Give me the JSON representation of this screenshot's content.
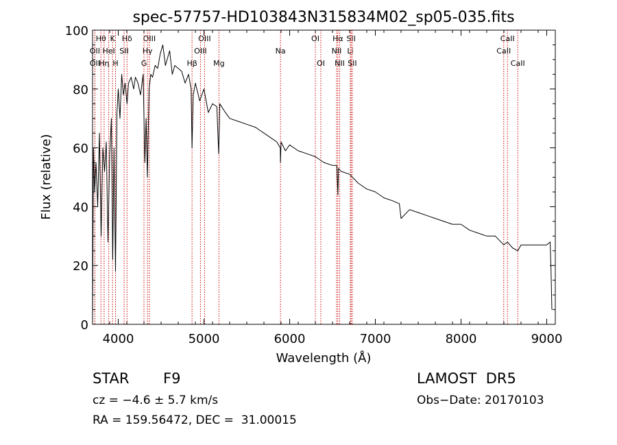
{
  "chart_data": {
    "type": "line",
    "title": "spec-57757-HD103843N315834M02_sp05-035.fits",
    "xlabel": "Wavelength (Å)",
    "ylabel": "Flux (relative)",
    "xlim": [
      3700,
      9100
    ],
    "ylim": [
      0,
      100
    ],
    "xticks": [
      4000,
      5000,
      6000,
      7000,
      8000,
      9000
    ],
    "yticks": [
      0,
      20,
      40,
      60,
      80,
      100
    ],
    "grid": false,
    "color": "#000000",
    "line_color": "#cc0000",
    "spectrum": {
      "x": [
        3700,
        3710,
        3725,
        3740,
        3760,
        3780,
        3800,
        3820,
        3840,
        3860,
        3880,
        3900,
        3920,
        3935,
        3950,
        3968,
        3985,
        4000,
        4020,
        4040,
        4060,
        4080,
        4102,
        4120,
        4150,
        4180,
        4200,
        4230,
        4260,
        4290,
        4310,
        4325,
        4340,
        4360,
        4380,
        4400,
        4430,
        4460,
        4490,
        4520,
        4550,
        4580,
        4600,
        4630,
        4660,
        4700,
        4740,
        4780,
        4820,
        4850,
        4861,
        4875,
        4900,
        4950,
        5000,
        5050,
        5100,
        5150,
        5172,
        5185,
        5250,
        5300,
        5400,
        5500,
        5600,
        5700,
        5800,
        5850,
        5890,
        5893,
        5900,
        5950,
        6000,
        6100,
        6200,
        6300,
        6400,
        6500,
        6550,
        6563,
        6570,
        6600,
        6700,
        6800,
        6900,
        7000,
        7100,
        7200,
        7280,
        7300,
        7400,
        7500,
        7600,
        7700,
        7800,
        7900,
        8000,
        8100,
        8200,
        8300,
        8400,
        8498,
        8542,
        8600,
        8662,
        8700,
        8800,
        8900,
        9000,
        9040,
        9050,
        9060
      ],
      "y": [
        0,
        60,
        45,
        55,
        40,
        65,
        30,
        60,
        52,
        62,
        28,
        58,
        70,
        22,
        60,
        18,
        72,
        80,
        70,
        85,
        78,
        82,
        75,
        82,
        84,
        80,
        84,
        82,
        78,
        85,
        55,
        70,
        50,
        80,
        85,
        84,
        88,
        87,
        92,
        95,
        88,
        91,
        93,
        85,
        88,
        87,
        86,
        82,
        85,
        80,
        60,
        78,
        82,
        76,
        80,
        72,
        75,
        74,
        58,
        75,
        72,
        70,
        69,
        68,
        67,
        65,
        63,
        62,
        60,
        55,
        62,
        59,
        61,
        59,
        58,
        57,
        55,
        54,
        54,
        44,
        53,
        52,
        51,
        48,
        46,
        45,
        43,
        42,
        41,
        36,
        39,
        38,
        37,
        36,
        35,
        34,
        34,
        32,
        31,
        30,
        30,
        27,
        28,
        26,
        25,
        27,
        27,
        27,
        27,
        28,
        18,
        5
      ]
    },
    "lines": [
      {
        "label": "Hθ",
        "x": 3798,
        "row": 0
      },
      {
        "label": "OII",
        "x": 3727,
        "row": 1
      },
      {
        "label": "OII",
        "x": 3727,
        "row": 2
      },
      {
        "label": "K",
        "x": 3933,
        "row": 0
      },
      {
        "label": "HeI",
        "x": 3889,
        "row": 1
      },
      {
        "label": "Hη",
        "x": 3835,
        "row": 2
      },
      {
        "label": "H",
        "x": 3968,
        "row": 2
      },
      {
        "label": "Hδ",
        "x": 4102,
        "row": 0
      },
      {
        "label": "SII",
        "x": 4068,
        "row": 1
      },
      {
        "label": "OIII",
        "x": 4363,
        "row": 0
      },
      {
        "label": "Hγ",
        "x": 4341,
        "row": 1
      },
      {
        "label": "G",
        "x": 4300,
        "row": 2
      },
      {
        "label": "OIII",
        "x": 5007,
        "row": 0
      },
      {
        "label": "OIII",
        "x": 4959,
        "row": 1
      },
      {
        "label": "Hβ",
        "x": 4861,
        "row": 2
      },
      {
        "label": "Mg",
        "x": 5175,
        "row": 2
      },
      {
        "label": "Na",
        "x": 5893,
        "row": 1
      },
      {
        "label": "OI",
        "x": 6300,
        "row": 0
      },
      {
        "label": "OI",
        "x": 6364,
        "row": 2
      },
      {
        "label": "Hα",
        "x": 6563,
        "row": 0
      },
      {
        "label": "NII",
        "x": 6548,
        "row": 1
      },
      {
        "label": "NII",
        "x": 6584,
        "row": 2
      },
      {
        "label": "SII",
        "x": 6717,
        "row": 0
      },
      {
        "label": "Li",
        "x": 6708,
        "row": 1
      },
      {
        "label": "SII",
        "x": 6731,
        "row": 2
      },
      {
        "label": "CaII",
        "x": 8542,
        "row": 0
      },
      {
        "label": "CaII",
        "x": 8498,
        "row": 1
      },
      {
        "label": "CaII",
        "x": 8662,
        "row": 2
      }
    ]
  },
  "info": {
    "object_type": "STAR",
    "subclass": "F9",
    "survey": "LAMOST  DR5",
    "redshift": "cz = −4.6 ± 5.7 km/s",
    "obs_date": "Obs−Date: 20170103",
    "coords": "RA = 159.56472, DEC =  31.00015"
  }
}
